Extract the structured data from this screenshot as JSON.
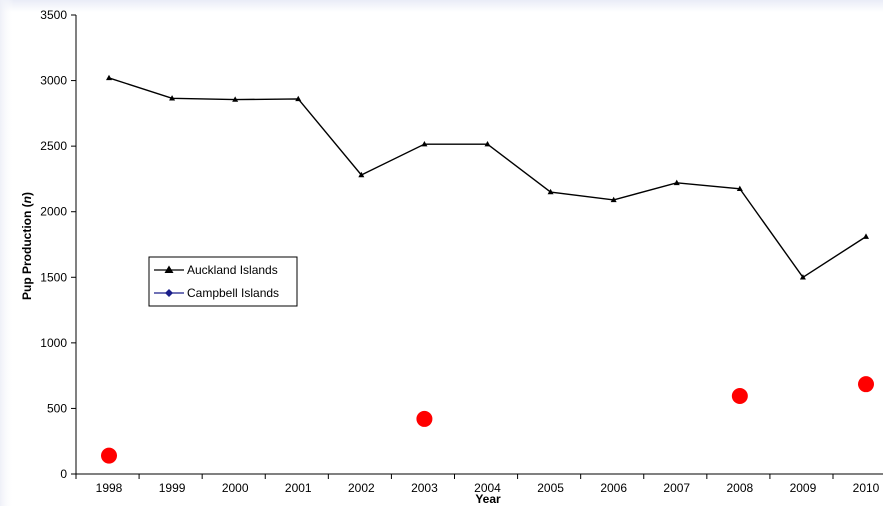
{
  "chart_data": {
    "type": "line",
    "title": "",
    "xlabel": "Year",
    "ylabel_main": "Pup Production (",
    "ylabel_italic": "n",
    "ylabel_tail": ")",
    "x": [
      1998,
      1999,
      2000,
      2001,
      2002,
      2003,
      2004,
      2005,
      2006,
      2007,
      2008,
      2009,
      2010
    ],
    "ylim": [
      0,
      3500
    ],
    "yticks": [
      0,
      500,
      1000,
      1500,
      2000,
      2500,
      3000,
      3500
    ],
    "grid": false,
    "legend_position": "middle-left",
    "series": [
      {
        "name": "Auckland Islands",
        "color": "#000000",
        "marker": "triangle",
        "values": [
          3020,
          2865,
          2855,
          2860,
          2280,
          2515,
          2515,
          2150,
          2090,
          2220,
          2175,
          1500,
          1810
        ]
      },
      {
        "name": "Campbell Islands",
        "color": "#1b1f8a",
        "marker": "diamond",
        "line_color": "#1b1f8a",
        "points_color": "#ff0000",
        "points": [
          {
            "x": 1998,
            "y": 140
          },
          {
            "x": 2003,
            "y": 420
          },
          {
            "x": 2008,
            "y": 595
          },
          {
            "x": 2010,
            "y": 685
          }
        ]
      }
    ]
  }
}
